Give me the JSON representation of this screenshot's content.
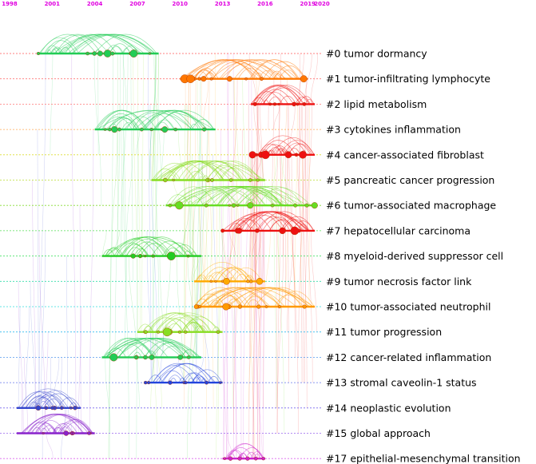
{
  "years": [
    {
      "label": "1998",
      "value": 1998
    },
    {
      "label": "2001",
      "value": 2001
    },
    {
      "label": "2004",
      "value": 2004
    },
    {
      "label": "2007",
      "value": 2007
    },
    {
      "label": "2010",
      "value": 2010
    },
    {
      "label": "2013",
      "value": 2013
    },
    {
      "label": "2016",
      "value": 2016
    },
    {
      "label": "2019",
      "value": 2019
    },
    {
      "label": "2020",
      "value": 2020
    }
  ],
  "clusters": [
    {
      "label": "#0 tumor dormancy",
      "start": 2000,
      "end": 2008.5,
      "color": "#22cc55",
      "lineColor": "#ff5555"
    },
    {
      "label": "#1 tumor-infiltrating lymphocyte",
      "start": 2010,
      "end": 2019,
      "color": "#ff7700",
      "lineColor": "#ff7777"
    },
    {
      "label": "#2 lipid metabolism",
      "start": 2015,
      "end": 2019.5,
      "color": "#ee1111",
      "lineColor": "#ff7777"
    },
    {
      "label": "#3 cytokines inflammation",
      "start": 2004,
      "end": 2012.5,
      "color": "#22cc55",
      "lineColor": "#ffaa55"
    },
    {
      "label": "#4 cancer-associated fibroblast",
      "start": 2015,
      "end": 2019.5,
      "color": "#ee1111",
      "lineColor": "#dddd33"
    },
    {
      "label": "#5 pancreatic cancer progression",
      "start": 2008,
      "end": 2016,
      "color": "#88dd22",
      "lineColor": "#bbdd33"
    },
    {
      "label": "#6 tumor-associated macrophage",
      "start": 2009,
      "end": 2019.5,
      "color": "#66dd22",
      "lineColor": "#88dd33"
    },
    {
      "label": "#7 hepatocellular carcinoma",
      "start": 2013,
      "end": 2019.5,
      "color": "#ee1111",
      "lineColor": "#55dd55"
    },
    {
      "label": "#8 myeloid-derived suppressor cell",
      "start": 2004.5,
      "end": 2011.5,
      "color": "#22cc22",
      "lineColor": "#33dd55"
    },
    {
      "label": "#9 tumor necrosis factor link",
      "start": 2011,
      "end": 2016,
      "color": "#ffaa00",
      "lineColor": "#33ddaa"
    },
    {
      "label": "#10 tumor-associated neutrophil",
      "start": 2011,
      "end": 2019.5,
      "color": "#ff9900",
      "lineColor": "#33dddd"
    },
    {
      "label": "#11 tumor progression",
      "start": 2007,
      "end": 2013,
      "color": "#88dd22",
      "lineColor": "#33bbee"
    },
    {
      "label": "#12 cancer-related inflammation",
      "start": 2004.5,
      "end": 2011.5,
      "color": "#22cc55",
      "lineColor": "#5599ee"
    },
    {
      "label": "#13 stromal caveolin-1 status",
      "start": 2007.5,
      "end": 2013,
      "color": "#2244dd",
      "lineColor": "#6677ee"
    },
    {
      "label": "#14 neoplastic evolution",
      "start": 1998.5,
      "end": 2003,
      "color": "#3344cc",
      "lineColor": "#7766ee"
    },
    {
      "label": "#15 global approach",
      "start": 1998.5,
      "end": 2004,
      "color": "#8822cc",
      "lineColor": "#9966ee"
    },
    {
      "label": "#17 epithelial-mesenchymal transition",
      "start": 2013,
      "end": 2016,
      "color": "#cc22cc",
      "lineColor": "#dd66ee"
    }
  ]
}
